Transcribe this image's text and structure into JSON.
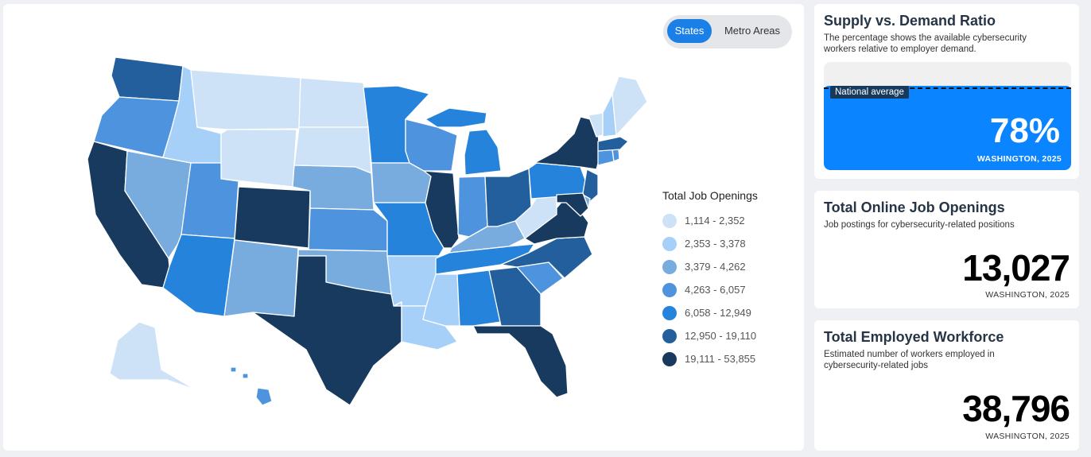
{
  "toggle": {
    "states_label": "States",
    "metro_label": "Metro Areas",
    "active": "States"
  },
  "legend": {
    "title": "Total Job Openings",
    "items": [
      {
        "label": "1,114 - 2,352",
        "color": "#cde2f7"
      },
      {
        "label": "2,353 - 3,378",
        "color": "#a6d0f8"
      },
      {
        "label": "3,379 - 4,262",
        "color": "#78acdf"
      },
      {
        "label": "4,263 - 6,057",
        "color": "#4d93dd"
      },
      {
        "label": "6,058 - 12,949",
        "color": "#2683db"
      },
      {
        "label": "12,950 - 19,110",
        "color": "#235f9d"
      },
      {
        "label": "19,111 - 53,855",
        "color": "#183a5e"
      }
    ]
  },
  "selected_state": "WA",
  "state_classes": {
    "WA": 5,
    "OR": 3,
    "CA": 6,
    "NV": 2,
    "ID": 1,
    "MT": 0,
    "WY": 0,
    "UT": 3,
    "AZ": 4,
    "NM": 2,
    "CO": 6,
    "ND": 0,
    "SD": 0,
    "NE": 2,
    "KS": 3,
    "OK": 2,
    "TX": 6,
    "MN": 4,
    "IA": 2,
    "MO": 4,
    "AR": 1,
    "LA": 1,
    "WI": 3,
    "IL": 6,
    "MI": 4,
    "IN": 3,
    "OH": 5,
    "KY": 2,
    "TN": 4,
    "MS": 1,
    "AL": 4,
    "GA": 5,
    "FL": 6,
    "SC": 3,
    "NC": 5,
    "VA": 6,
    "WV": 0,
    "PA": 4,
    "NY": 6,
    "NJ": 5,
    "DE": 2,
    "MD": 6,
    "CT": 3,
    "RI": 3,
    "MA": 5,
    "VT": 0,
    "NH": 1,
    "ME": 0,
    "AK": 0,
    "HI": 3
  },
  "ratio_card": {
    "title": "Supply vs. Demand Ratio",
    "desc_line1": "The percentage shows the available cybersecurity",
    "desc_line2": "workers relative to employer demand.",
    "national_label": "National average",
    "value": "78%",
    "ratio_level": 0.78,
    "sub": "WASHINGTON, 2025"
  },
  "openings_card": {
    "title": "Total Online Job Openings",
    "desc": "Job postings for cybersecurity-related positions",
    "value": "13,027",
    "sub": "WASHINGTON, 2025"
  },
  "workforce_card": {
    "title": "Total Employed Workforce",
    "desc_line1": "Estimated number of workers employed in",
    "desc_line2": "cybersecurity-related jobs",
    "value": "38,796",
    "sub": "WASHINGTON, 2025"
  }
}
